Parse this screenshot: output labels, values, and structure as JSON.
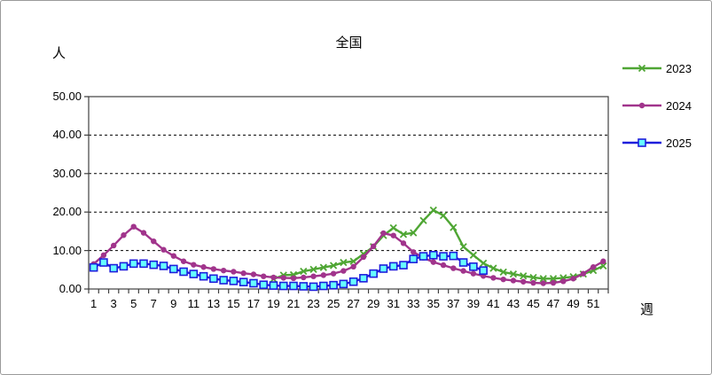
{
  "title": "全国",
  "y_axis_unit": "人",
  "x_axis_unit": "週",
  "colors": {
    "series_2023": "#4FA634",
    "series_2024": "#A1348C",
    "series_2025": "#1E1EDC",
    "series_2025_marker_fill": "#66FFFF",
    "gridline": "#000000",
    "frame": "#404040",
    "background": "#FFFFFF"
  },
  "legend": {
    "position": "right",
    "labels": [
      "2023",
      "2024",
      "2025"
    ]
  },
  "chart_data": {
    "type": "line",
    "title": "全国",
    "xlabel": "週",
    "ylabel": "人",
    "ylim": [
      0,
      50
    ],
    "y_tick_labels": [
      "0.00",
      "10.00",
      "20.00",
      "30.00",
      "40.00",
      "50.00"
    ],
    "x_tick_labels": [
      1,
      3,
      5,
      7,
      9,
      11,
      13,
      15,
      17,
      19,
      21,
      23,
      25,
      27,
      29,
      31,
      33,
      35,
      37,
      39,
      41,
      43,
      45,
      47,
      49,
      51
    ],
    "x_range_weeks": [
      1,
      52
    ],
    "grid": "horizontal-dashed",
    "legend_position": "right",
    "series": [
      {
        "name": "2023",
        "color": "#4FA634",
        "marker": "x",
        "start_week": 19,
        "values": [
          2.6,
          3.6,
          3.7,
          4.6,
          5.1,
          5.6,
          6.1,
          6.9,
          7.2,
          9.1,
          11.0,
          13.9,
          15.9,
          14.2,
          14.6,
          17.8,
          20.5,
          19.1,
          16.0,
          11.0,
          8.8,
          6.7,
          5.4,
          4.4,
          3.9,
          3.4,
          3.0,
          2.7,
          2.7,
          2.9,
          3.2,
          3.9,
          4.8,
          6.0
        ]
      },
      {
        "name": "2024",
        "color": "#A1348C",
        "marker": "circle",
        "start_week": 1,
        "values": [
          6.5,
          8.8,
          11.3,
          14.0,
          16.2,
          14.6,
          12.4,
          10.2,
          8.6,
          7.2,
          6.3,
          5.7,
          5.2,
          4.8,
          4.5,
          4.1,
          3.8,
          3.3,
          3.0,
          2.9,
          2.8,
          3.0,
          3.3,
          3.6,
          4.0,
          4.7,
          5.8,
          8.3,
          11.1,
          14.5,
          13.9,
          11.9,
          9.6,
          8.1,
          7.0,
          6.2,
          5.4,
          4.7,
          4.0,
          3.4,
          2.9,
          2.5,
          2.2,
          1.9,
          1.6,
          1.5,
          1.6,
          2.0,
          2.7,
          4.0,
          5.7,
          7.2
        ]
      },
      {
        "name": "2025",
        "color": "#1E1EDC",
        "marker": "square",
        "marker_fill": "#66FFFF",
        "start_week": 1,
        "values": [
          5.6,
          6.9,
          5.4,
          5.9,
          6.6,
          6.6,
          6.3,
          6.0,
          5.2,
          4.5,
          3.9,
          3.3,
          2.7,
          2.3,
          2.1,
          1.8,
          1.5,
          1.1,
          0.9,
          0.8,
          0.8,
          0.7,
          0.6,
          0.8,
          1.0,
          1.3,
          1.9,
          2.8,
          4.0,
          5.3,
          5.9,
          6.2,
          7.8,
          8.5,
          8.8,
          8.5,
          8.6,
          6.9,
          5.8,
          4.8
        ]
      }
    ]
  }
}
